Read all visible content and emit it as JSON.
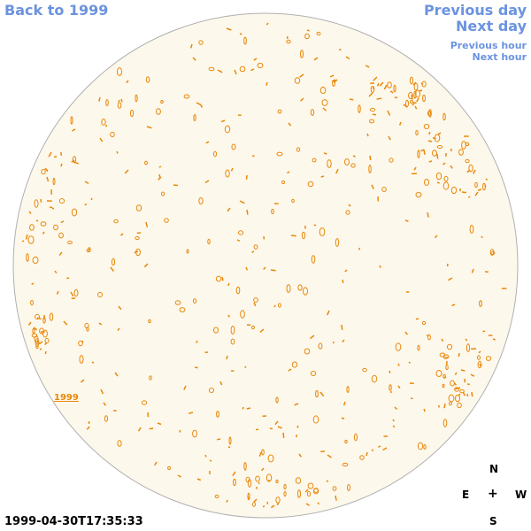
{
  "nav": {
    "back_label": "Back to 1999",
    "prev_day_label": "Previous day",
    "next_day_label": "Next day",
    "prev_hour_label": "Previous hour",
    "next_hour_label": "Next hour"
  },
  "map": {
    "year_label": "1999",
    "disc_fill": "#fdf8ec",
    "disc_stroke": "#b0b0b0",
    "mark_color": "#e8880a"
  },
  "timestamp": "1999-04-30T17:35:33",
  "compass": {
    "n": "N",
    "e": "E",
    "center": "+",
    "w": "W",
    "s": "S"
  }
}
